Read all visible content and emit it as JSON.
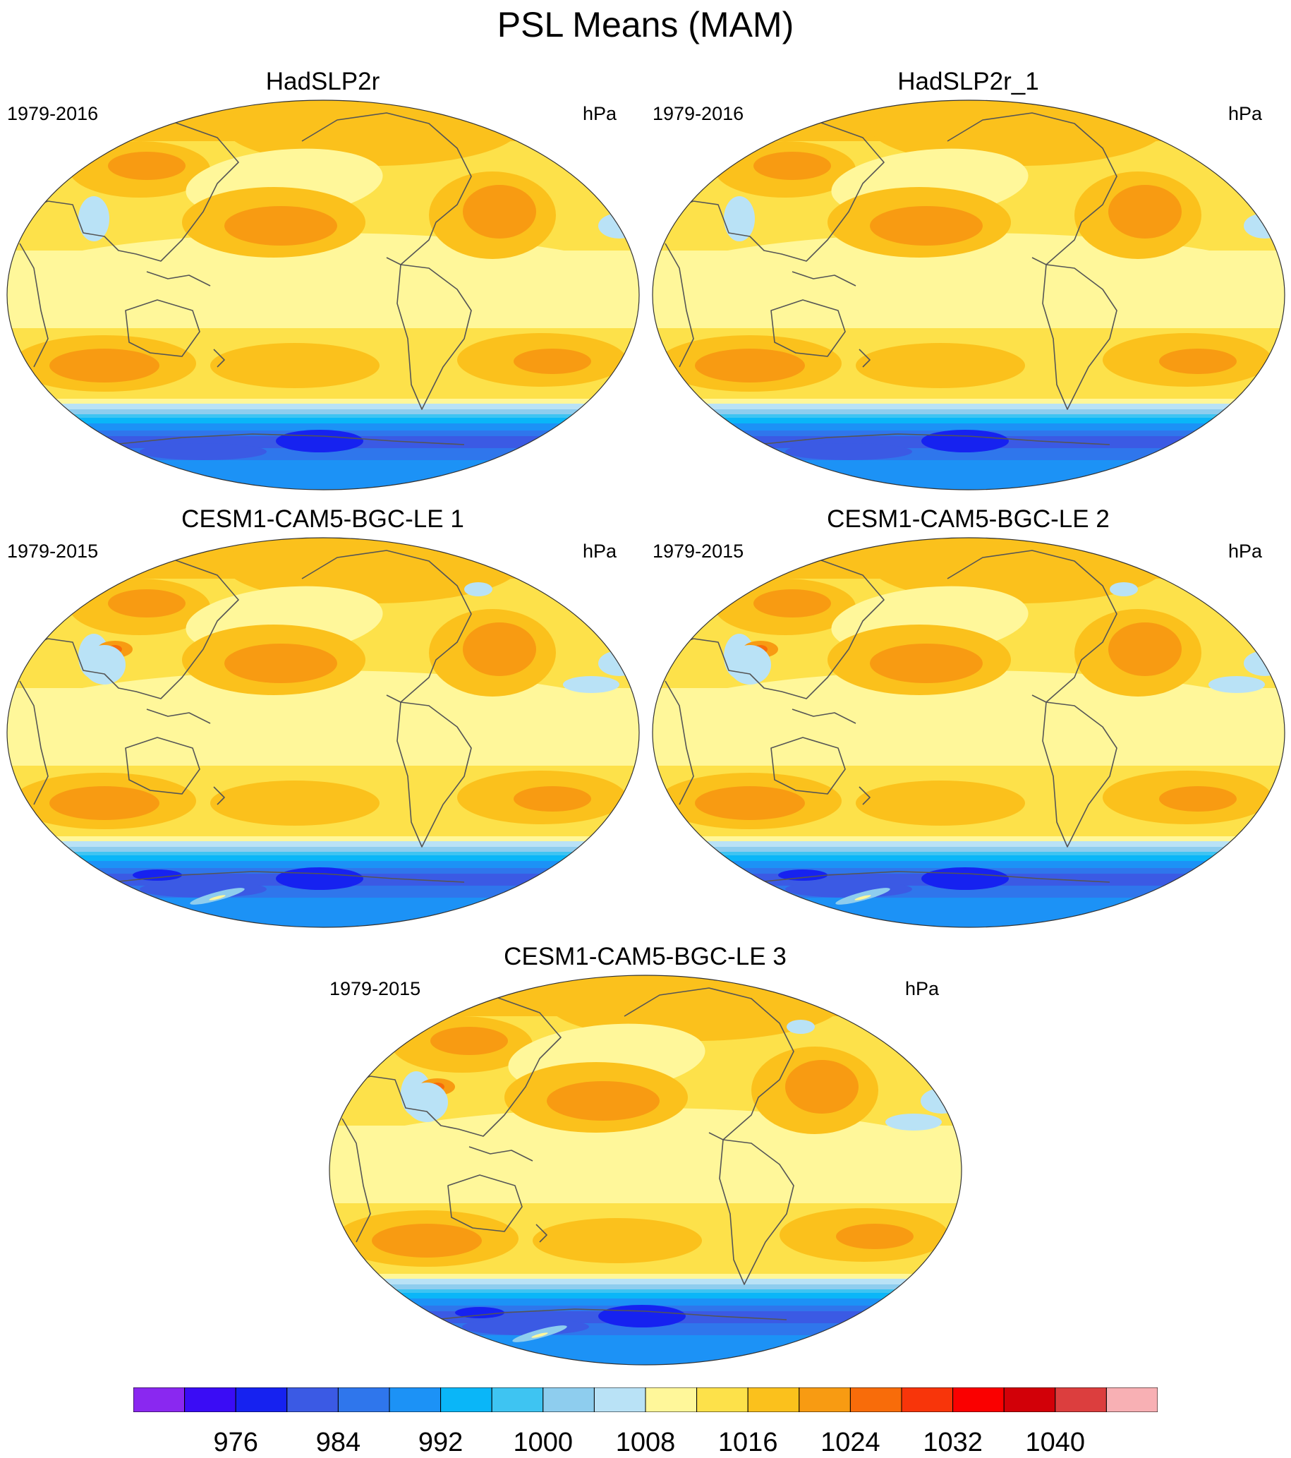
{
  "title": "PSL Means (MAM)",
  "panels": [
    {
      "title": "HadSLP2r",
      "left": "1979-2016",
      "right": "hPa",
      "variant": "obs"
    },
    {
      "title": "HadSLP2r_1",
      "left": "1979-2016",
      "right": "hPa",
      "variant": "obs"
    },
    {
      "title": "CESM1-CAM5-BGC-LE 1",
      "left": "1979-2015",
      "right": "hPa",
      "variant": "model"
    },
    {
      "title": "CESM1-CAM5-BGC-LE 2",
      "left": "1979-2015",
      "right": "hPa",
      "variant": "model"
    },
    {
      "title": "CESM1-CAM5-BGC-LE 3",
      "left": "1979-2015",
      "right": "hPa",
      "variant": "model"
    }
  ],
  "colorbar": {
    "colors": [
      "#8a28f0",
      "#3a0cf5",
      "#1622f0",
      "#3b5ae4",
      "#2f76ec",
      "#1c92f6",
      "#0ab6f8",
      "#3ec4f2",
      "#8ecdee",
      "#b9e2f6",
      "#fff79a",
      "#fde14a",
      "#fbc11c",
      "#f89b12",
      "#f86c0a",
      "#f8350a",
      "#fa0000",
      "#d20008",
      "#dc3e3e",
      "#f8b0b4"
    ],
    "labels": [
      "976",
      "984",
      "992",
      "1000",
      "1008",
      "1016",
      "1024",
      "1032",
      "1040"
    ]
  }
}
